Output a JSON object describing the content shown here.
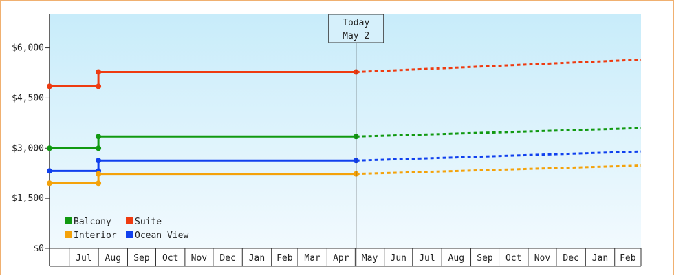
{
  "chart_data": {
    "type": "line",
    "today": {
      "line1": "Today",
      "line2": "May 2"
    },
    "ylim": [
      0,
      7000
    ],
    "yticks": [
      {
        "value": 0,
        "label": "$0"
      },
      {
        "value": 1500,
        "label": "$1,500"
      },
      {
        "value": 3000,
        "label": "$3,000"
      },
      {
        "value": 4500,
        "label": "$4,500"
      },
      {
        "value": 6000,
        "label": "$6,000"
      }
    ],
    "months": [
      "Jul",
      "Aug",
      "Sep",
      "Oct",
      "Nov",
      "Dec",
      "Jan",
      "Feb",
      "Mar",
      "Apr",
      "May",
      "Jun",
      "Jul",
      "Aug",
      "Sep",
      "Oct",
      "Nov",
      "Dec",
      "Jan",
      "Feb"
    ],
    "x_start": "2024-06-10",
    "change_date": "2024-08-01",
    "today_date": "2025-05-02",
    "x_end": "2026-03-01",
    "series": [
      {
        "name": "Suite",
        "color": "#ee3b10",
        "before": 4850,
        "after": 5280,
        "projected_end": 5650
      },
      {
        "name": "Balcony",
        "color": "#119911",
        "before": 3000,
        "after": 3350,
        "projected_end": 3600
      },
      {
        "name": "Ocean View",
        "color": "#1040ee",
        "before": 2320,
        "after": 2630,
        "projected_end": 2900
      },
      {
        "name": "Interior",
        "color": "#f4a20a",
        "before": 1950,
        "after": 2230,
        "projected_end": 2480
      }
    ],
    "legend_position": "bottom-left",
    "legend_order": [
      "Balcony",
      "Suite",
      "Interior",
      "Ocean View"
    ],
    "grid": false
  }
}
